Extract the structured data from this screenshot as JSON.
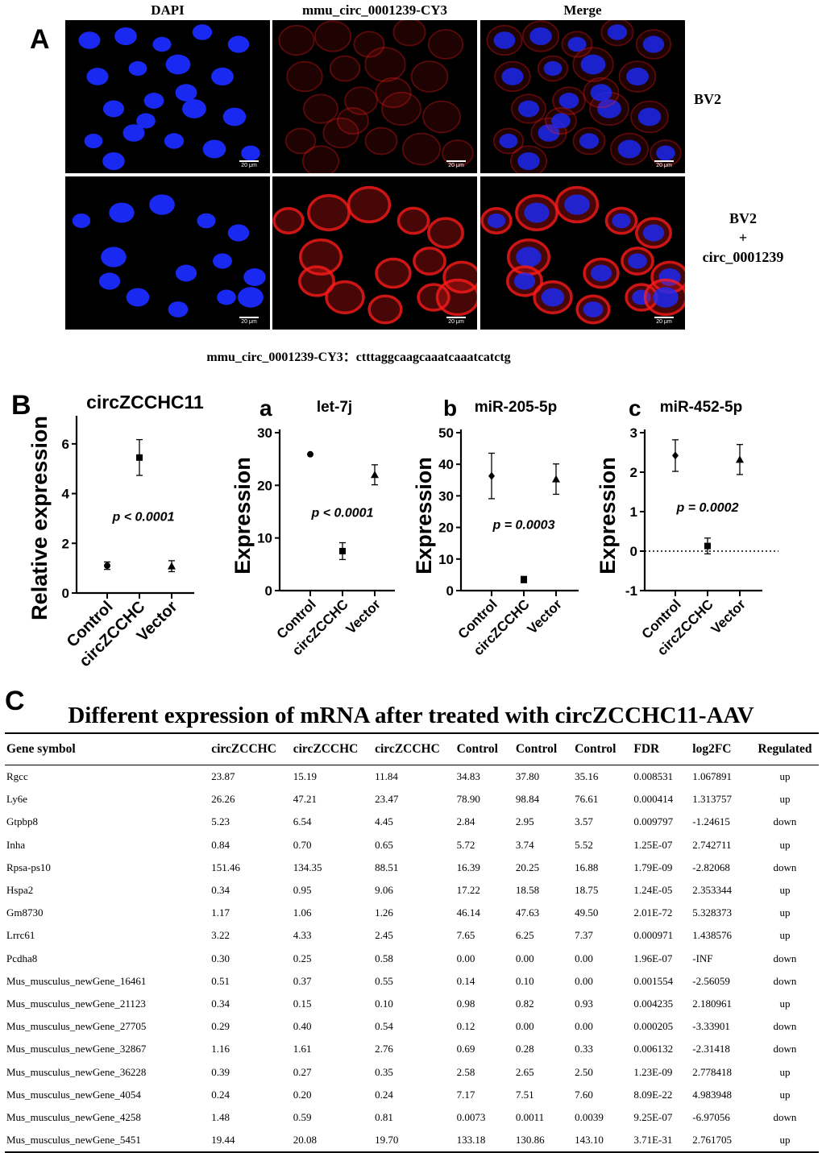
{
  "panels": {
    "a": "A",
    "b": "B",
    "c": "C"
  },
  "panel_a": {
    "columns": [
      "DAPI",
      "mmu_circ_0001239-CY3",
      "Merge"
    ],
    "rows": [
      {
        "label_lines": [
          "BV2"
        ]
      },
      {
        "label_lines": [
          "BV2",
          "+",
          "circ_0001239"
        ]
      }
    ],
    "scale_bar": "20 μm",
    "probe_text": "mmu_circ_0001239-CY3：ctttaggcaagcaaatcaaatcatctg",
    "colors": {
      "dapi": "#1a2bff",
      "cy3": "#ff1a1a",
      "background": "#000000"
    }
  },
  "chart_data": [
    {
      "type": "scatter",
      "title": "circZCCHC11",
      "panel_label": "",
      "ylabel": "Relative expression",
      "categories": [
        "Control",
        "circZCCHC",
        "Vector"
      ],
      "values": [
        1.1,
        5.45,
        1.08
      ],
      "errors": [
        0.15,
        0.72,
        0.22
      ],
      "markers": [
        "circle",
        "square",
        "triangle"
      ],
      "ylim": [
        0,
        7
      ],
      "yticks": [
        0,
        2,
        4,
        6
      ],
      "annotation": "p < 0.0001",
      "annotation_value": 2.9,
      "zero_line": false
    },
    {
      "type": "scatter",
      "title": "let-7j",
      "panel_label": "a",
      "ylabel": "Expression",
      "categories": [
        "Control",
        "circZCCHC",
        "Vector"
      ],
      "values": [
        25.9,
        7.5,
        22
      ],
      "errors": [
        0,
        1.6,
        1.9
      ],
      "markers": [
        "circle",
        "square",
        "triangle"
      ],
      "ylim": [
        0,
        30
      ],
      "yticks": [
        0,
        10,
        20,
        30
      ],
      "annotation": "p < 0.0001",
      "annotation_value": 14,
      "zero_line": false
    },
    {
      "type": "scatter",
      "title": "miR-205-5p",
      "panel_label": "b",
      "ylabel": "Expression",
      "categories": [
        "Control",
        "circZCCHC",
        "Vector"
      ],
      "values": [
        36.3,
        3.5,
        35.3
      ],
      "errors": [
        7.2,
        1.0,
        4.8
      ],
      "markers": [
        "diamond",
        "square",
        "triangle"
      ],
      "ylim": [
        0,
        50
      ],
      "yticks": [
        0,
        10,
        20,
        30,
        40,
        50
      ],
      "annotation": "p = 0.0003",
      "annotation_value": 19.5,
      "zero_line": false
    },
    {
      "type": "scatter",
      "title": "miR-452-5p",
      "panel_label": "c",
      "ylabel": "Expression",
      "categories": [
        "Control",
        "circZCCHC",
        "Vector"
      ],
      "values": [
        2.42,
        0.13,
        2.32
      ],
      "errors": [
        0.4,
        0.2,
        0.38
      ],
      "markers": [
        "diamond",
        "square",
        "triangle"
      ],
      "ylim": [
        -1,
        3
      ],
      "yticks": [
        -1,
        0,
        1,
        2,
        3
      ],
      "annotation": "p = 0.0002",
      "annotation_value": 1.0,
      "zero_line": true
    }
  ],
  "table": {
    "title": "Different expression of mRNA after treated with circZCCHC11-AAV",
    "headers": [
      "Gene symbol",
      "circZCCHC",
      "circZCCHC",
      "circZCCHC",
      "Control",
      "Control",
      "Control",
      "FDR",
      "log2FC",
      "Regulated"
    ],
    "rows": [
      [
        "Rgcc",
        "23.87",
        "15.19",
        "11.84",
        "34.83",
        "37.80",
        "35.16",
        "0.008531",
        "1.067891",
        "up"
      ],
      [
        "Ly6e",
        "26.26",
        "47.21",
        "23.47",
        "78.90",
        "98.84",
        "76.61",
        "0.000414",
        "1.313757",
        "up"
      ],
      [
        "Gtpbp8",
        "5.23",
        "6.54",
        "4.45",
        "2.84",
        "2.95",
        "3.57",
        "0.009797",
        "-1.24615",
        "down"
      ],
      [
        "Inha",
        "0.84",
        "0.70",
        "0.65",
        "5.72",
        "3.74",
        "5.52",
        "1.25E-07",
        "2.742711",
        "up"
      ],
      [
        "Rpsa-ps10",
        "151.46",
        "134.35",
        "88.51",
        "16.39",
        "20.25",
        "16.88",
        "1.79E-09",
        "-2.82068",
        "down"
      ],
      [
        "Hspa2",
        "0.34",
        "0.95",
        "9.06",
        "17.22",
        "18.58",
        "18.75",
        "1.24E-05",
        "2.353344",
        "up"
      ],
      [
        "Gm8730",
        "1.17",
        "1.06",
        "1.26",
        "46.14",
        "47.63",
        "49.50",
        "2.01E-72",
        "5.328373",
        "up"
      ],
      [
        "Lrrc61",
        "3.22",
        "4.33",
        "2.45",
        "7.65",
        "6.25",
        "7.37",
        "0.000971",
        "1.438576",
        "up"
      ],
      [
        "Pcdha8",
        "0.30",
        "0.25",
        "0.58",
        "0.00",
        "0.00",
        "0.00",
        "1.96E-07",
        "-INF",
        "down"
      ],
      [
        "Mus_musculus_newGene_16461",
        "0.51",
        "0.37",
        "0.55",
        "0.14",
        "0.10",
        "0.00",
        "0.001554",
        "-2.56059",
        "down"
      ],
      [
        "Mus_musculus_newGene_21123",
        "0.34",
        "0.15",
        "0.10",
        "0.98",
        "0.82",
        "0.93",
        "0.004235",
        "2.180961",
        "up"
      ],
      [
        "Mus_musculus_newGene_27705",
        "0.29",
        "0.40",
        "0.54",
        "0.12",
        "0.00",
        "0.00",
        "0.000205",
        "-3.33901",
        "down"
      ],
      [
        "Mus_musculus_newGene_32867",
        "1.16",
        "1.61",
        "2.76",
        "0.69",
        "0.28",
        "0.33",
        "0.006132",
        "-2.31418",
        "down"
      ],
      [
        "Mus_musculus_newGene_36228",
        "0.39",
        "0.27",
        "0.35",
        "2.58",
        "2.65",
        "2.50",
        "1.23E-09",
        "2.778418",
        "up"
      ],
      [
        "Mus_musculus_newGene_4054",
        "0.24",
        "0.20",
        "0.24",
        "7.17",
        "7.51",
        "7.60",
        "8.09E-22",
        "4.983948",
        "up"
      ],
      [
        "Mus_musculus_newGene_4258",
        "1.48",
        "0.59",
        "0.81",
        "0.0073",
        "0.0011",
        "0.0039",
        "9.25E-07",
        "-6.97056",
        "down"
      ],
      [
        "Mus_musculus_newGene_5451",
        "19.44",
        "20.08",
        "19.70",
        "133.18",
        "130.86",
        "143.10",
        "3.71E-31",
        "2.761705",
        "up"
      ]
    ]
  }
}
